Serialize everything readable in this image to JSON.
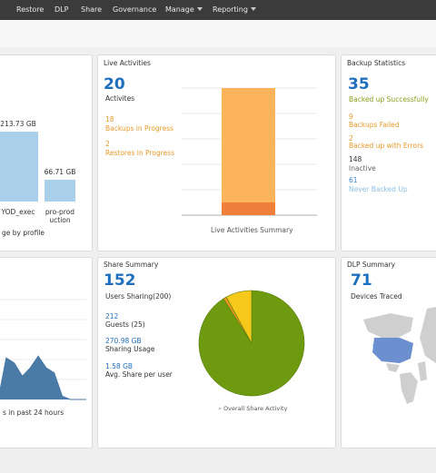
{
  "nav": [
    "Restore",
    "DLP",
    "Share",
    "Governance",
    "Manage",
    "Reporting"
  ],
  "storage": {
    "chart": {
      "type": "bar",
      "values": [
        213.73,
        66.71
      ],
      "value_labels": [
        "213.73 GB",
        "66.71 GB"
      ],
      "categories": [
        "YOD_exec",
        "pro-prod uction"
      ],
      "ylim": [
        0,
        250
      ],
      "color": "#a9cfea"
    },
    "caption": "ge by profile"
  },
  "live": {
    "title": "Live Activities",
    "total": 20,
    "total_label": "Activites",
    "stats": [
      {
        "value": 18,
        "label": "Backups in Progress"
      },
      {
        "value": 2,
        "label": "Restores in Progress"
      }
    ],
    "chart": {
      "type": "stacked-bar",
      "ylim": [
        0,
        20
      ],
      "yticks": [
        0,
        4,
        8,
        12,
        16,
        20
      ],
      "grid": true,
      "colors": [
        "#fbb45c",
        "#f07f3c"
      ],
      "caption": "Live Activities Summary"
    }
  },
  "backup": {
    "title": "Backup Statistics",
    "total": 35,
    "total_label": "Backed up Successfully",
    "stats": [
      {
        "value": 9,
        "label": "Backups Failed"
      },
      {
        "value": 2,
        "label": "Backed up with Errors"
      },
      {
        "value": 148,
        "label": "Inactive"
      },
      {
        "value": 61,
        "label": "Never Backed Up"
      }
    ]
  },
  "activity": {
    "chart": {
      "type": "area",
      "values": [
        0,
        25,
        22,
        14,
        19,
        26,
        19,
        16,
        2,
        0,
        0,
        0
      ],
      "ylim": [
        0,
        60
      ],
      "yticks": [
        0,
        12,
        24,
        36,
        48,
        60
      ],
      "grid": true,
      "color": "#4a7aa6"
    },
    "caption": "s in past 24 hours"
  },
  "share": {
    "title": "Share Summary",
    "total": 152,
    "total_label": "Users Sharing(200)",
    "stats": [
      {
        "value": 212,
        "label": "Guests (25)"
      },
      {
        "value": "270.98 GB",
        "label": "Sharing Usage"
      },
      {
        "value": "1.58 GB",
        "label": "Avg. Share per user"
      }
    ],
    "chart": {
      "type": "pie",
      "values": [
        91,
        1,
        8
      ],
      "colors": [
        "#6e9a0f",
        "#e8951c",
        "#f6c81a"
      ],
      "caption": "Overall Share Activity"
    }
  },
  "dlp": {
    "title": "DLP Summary",
    "total": 71,
    "total_label": "Devices Traced"
  }
}
